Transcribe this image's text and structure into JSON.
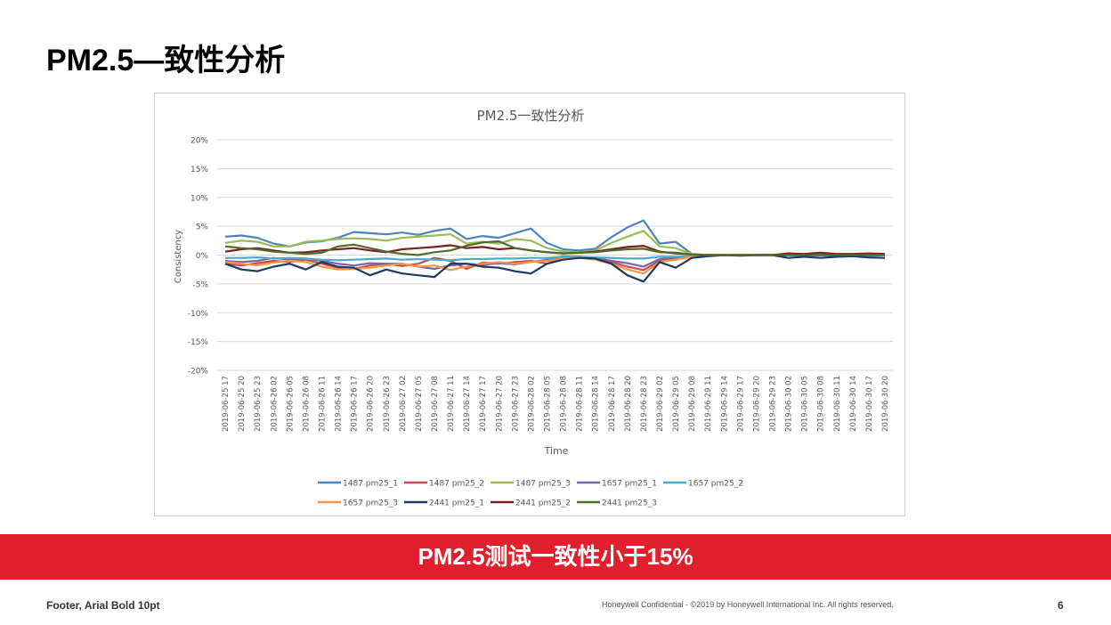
{
  "slide": {
    "title": "PM2.5—致性分析",
    "banner": "PM2.5测试一致性小于15%",
    "footer_left": "Footer, Arial Bold 10pt",
    "footer_confidential": "Honeywell Confidential - ©2019 by Honeywell International Inc. All rights reserved.",
    "page_number": "6"
  },
  "chart_data": {
    "type": "line",
    "title": "PM2.5一致性分析",
    "xlabel": "Time",
    "ylabel": "Consistency",
    "ylim": [
      -20,
      20
    ],
    "yticks": [
      20,
      15,
      10,
      5,
      0,
      -5,
      -10,
      -15,
      -20
    ],
    "ytick_labels": [
      "20%",
      "15%",
      "10%",
      "5%",
      "0%",
      "-5%",
      "-10%",
      "-15%",
      "-20%"
    ],
    "categories": [
      "2019-06-25 17",
      "2019-06-25 20",
      "2019-06-25 23",
      "2019-06-26 02",
      "2019-06-26 05",
      "2019-06-26 08",
      "2019-06-26 11",
      "2019-06-26 14",
      "2019-06-26 17",
      "2019-06-26 20",
      "2019-06-26 23",
      "2019-06-27 02",
      "2019-06-27 05",
      "2019-06-27 08",
      "2019-06-27 11",
      "2019-06-27 14",
      "2019-06-27 17",
      "2019-06-27 20",
      "2019-06-27 23",
      "2019-06-28 02",
      "2019-06-28 05",
      "2019-06-28 08",
      "2019-06-28 11",
      "2019-06-28 14",
      "2019-06-28 17",
      "2019-06-28 20",
      "2019-06-28 23",
      "2019-06-29 02",
      "2019-06-29 05",
      "2019-06-29 08",
      "2019-06-29 11",
      "2019-06-29 14",
      "2019-06-29 17",
      "2019-06-29 20",
      "2019-06-29 23",
      "2019-06-30 02",
      "2019-06-30 05",
      "2019-06-30 08",
      "2019-06-30 11",
      "2019-06-30 14",
      "2019-06-30 17",
      "2019-06-30 20"
    ],
    "legend_position": "bottom",
    "series": [
      {
        "name": "1487 pm25_1",
        "color": "#4f81bd",
        "values": [
          3.2,
          3.4,
          3.0,
          2.0,
          1.5,
          2.2,
          2.4,
          3.0,
          4.0,
          3.8,
          3.6,
          3.9,
          3.5,
          4.2,
          4.6,
          2.8,
          3.3,
          3.0,
          3.8,
          4.6,
          2.1,
          1.0,
          0.8,
          1.1,
          3.1,
          4.8,
          6.0,
          2.0,
          2.3,
          0.2,
          0.0,
          0.0,
          0.0,
          0.0,
          0.0,
          0.0,
          0.0,
          0.0,
          0.0,
          0.0,
          0.0,
          0.0
        ]
      },
      {
        "name": "1487 pm25_2",
        "color": "#c0504d",
        "values": [
          -1.5,
          -1.8,
          -1.4,
          -1.0,
          -1.2,
          -0.8,
          -1.5,
          -2.2,
          -2.4,
          -1.8,
          -1.5,
          -1.9,
          -1.5,
          -0.5,
          -1.0,
          -2.4,
          -1.3,
          -1.5,
          -1.2,
          -1.0,
          -1.5,
          -0.5,
          -0.3,
          -0.5,
          -1.2,
          -2.0,
          -2.6,
          -1.0,
          -0.5,
          -0.3,
          0.0,
          0.0,
          0.0,
          0.0,
          0.0,
          0.0,
          0.0,
          0.0,
          0.0,
          0.0,
          0.0,
          0.0
        ]
      },
      {
        "name": "1487 pm25_3",
        "color": "#9bbb59",
        "values": [
          2.1,
          2.5,
          2.3,
          1.5,
          1.5,
          2.3,
          2.5,
          2.8,
          2.9,
          2.8,
          2.5,
          3.0,
          3.2,
          3.4,
          3.6,
          2.0,
          2.3,
          2.0,
          2.8,
          2.5,
          1.2,
          0.6,
          0.5,
          0.8,
          2.1,
          3.2,
          4.2,
          1.5,
          1.2,
          0.2,
          0.0,
          0.0,
          0.0,
          0.0,
          0.0,
          0.0,
          0.0,
          0.0,
          0.0,
          0.0,
          0.0,
          0.0
        ]
      },
      {
        "name": "1657 pm25_1",
        "color": "#8064a2",
        "values": [
          -1.0,
          -1.2,
          -1.0,
          -0.5,
          -0.8,
          -0.6,
          -1.0,
          -1.5,
          -1.8,
          -1.4,
          -1.5,
          -1.5,
          -2.0,
          -2.4,
          -1.8,
          -1.5,
          -1.7,
          -1.4,
          -1.6,
          -1.2,
          -0.8,
          -0.2,
          -0.3,
          -0.5,
          -1.0,
          -1.4,
          -2.0,
          -0.7,
          -0.5,
          -0.2,
          0.0,
          0.0,
          0.0,
          0.0,
          0.0,
          0.0,
          0.0,
          0.0,
          0.0,
          0.0,
          0.0,
          0.0
        ]
      },
      {
        "name": "1657 pm25_2",
        "color": "#4bacc6",
        "values": [
          -0.5,
          -0.5,
          -0.4,
          -0.6,
          -0.5,
          -0.6,
          -0.8,
          -0.9,
          -0.8,
          -0.7,
          -0.6,
          -0.8,
          -0.7,
          -0.8,
          -0.9,
          -0.7,
          -0.7,
          -0.6,
          -0.6,
          -0.5,
          -0.5,
          -0.3,
          -0.3,
          -0.4,
          -0.5,
          -0.6,
          -0.6,
          -0.3,
          -0.3,
          -0.2,
          0.0,
          0.0,
          0.0,
          0.0,
          0.0,
          0.0,
          0.0,
          0.0,
          0.0,
          0.0,
          0.0,
          0.0
        ]
      },
      {
        "name": "1657 pm25_3",
        "color": "#f79646",
        "values": [
          -1.2,
          -1.5,
          -1.8,
          -1.3,
          -1.0,
          -1.2,
          -2.0,
          -2.5,
          -2.4,
          -2.2,
          -1.8,
          -1.5,
          -2.0,
          -1.8,
          -2.6,
          -2.0,
          -1.5,
          -1.2,
          -1.5,
          -1.2,
          -1.0,
          -0.6,
          -0.5,
          -0.8,
          -1.5,
          -2.5,
          -3.2,
          -1.2,
          -0.8,
          -0.3,
          0.0,
          0.0,
          0.0,
          0.0,
          0.0,
          0.0,
          0.0,
          0.0,
          0.0,
          0.0,
          0.0,
          0.0
        ]
      },
      {
        "name": "2441 pm25_1",
        "color": "#1f3864",
        "values": [
          -1.5,
          -2.5,
          -2.8,
          -2.0,
          -1.5,
          -2.5,
          -1.2,
          -2.0,
          -2.2,
          -3.5,
          -2.5,
          -3.2,
          -3.5,
          -3.8,
          -1.5,
          -1.5,
          -2.0,
          -2.2,
          -2.8,
          -3.2,
          -1.5,
          -0.8,
          -0.5,
          -0.6,
          -1.5,
          -3.5,
          -4.6,
          -1.2,
          -2.2,
          -0.5,
          -0.2,
          0.0,
          -0.1,
          0.0,
          0.0,
          -0.5,
          -0.3,
          -0.5,
          -0.3,
          -0.2,
          -0.4,
          -0.5
        ]
      },
      {
        "name": "2441 pm25_2",
        "color": "#7b2020",
        "values": [
          0.6,
          1.0,
          1.2,
          0.8,
          0.4,
          0.5,
          0.8,
          1.0,
          1.2,
          0.8,
          0.5,
          1.0,
          1.2,
          1.4,
          1.7,
          1.2,
          1.4,
          1.0,
          1.2,
          0.8,
          0.5,
          0.3,
          0.4,
          0.6,
          1.0,
          1.4,
          1.6,
          0.6,
          0.3,
          0.1,
          0.0,
          0.0,
          0.0,
          0.0,
          0.0,
          0.3,
          0.2,
          0.4,
          0.2,
          0.2,
          0.3,
          0.2
        ]
      },
      {
        "name": "2441 pm25_3",
        "color": "#4e6b2a",
        "values": [
          1.5,
          1.2,
          1.0,
          0.6,
          0.4,
          0.2,
          0.4,
          1.5,
          1.8,
          1.2,
          0.6,
          0.2,
          0.0,
          0.5,
          0.8,
          1.6,
          2.2,
          2.4,
          1.2,
          0.8,
          0.5,
          0.3,
          0.4,
          0.5,
          0.8,
          1.0,
          1.1,
          0.5,
          0.4,
          0.1,
          0.0,
          0.0,
          0.0,
          0.0,
          0.0,
          0.0,
          0.0,
          0.0,
          0.0,
          0.0,
          0.0,
          0.0
        ]
      }
    ]
  }
}
